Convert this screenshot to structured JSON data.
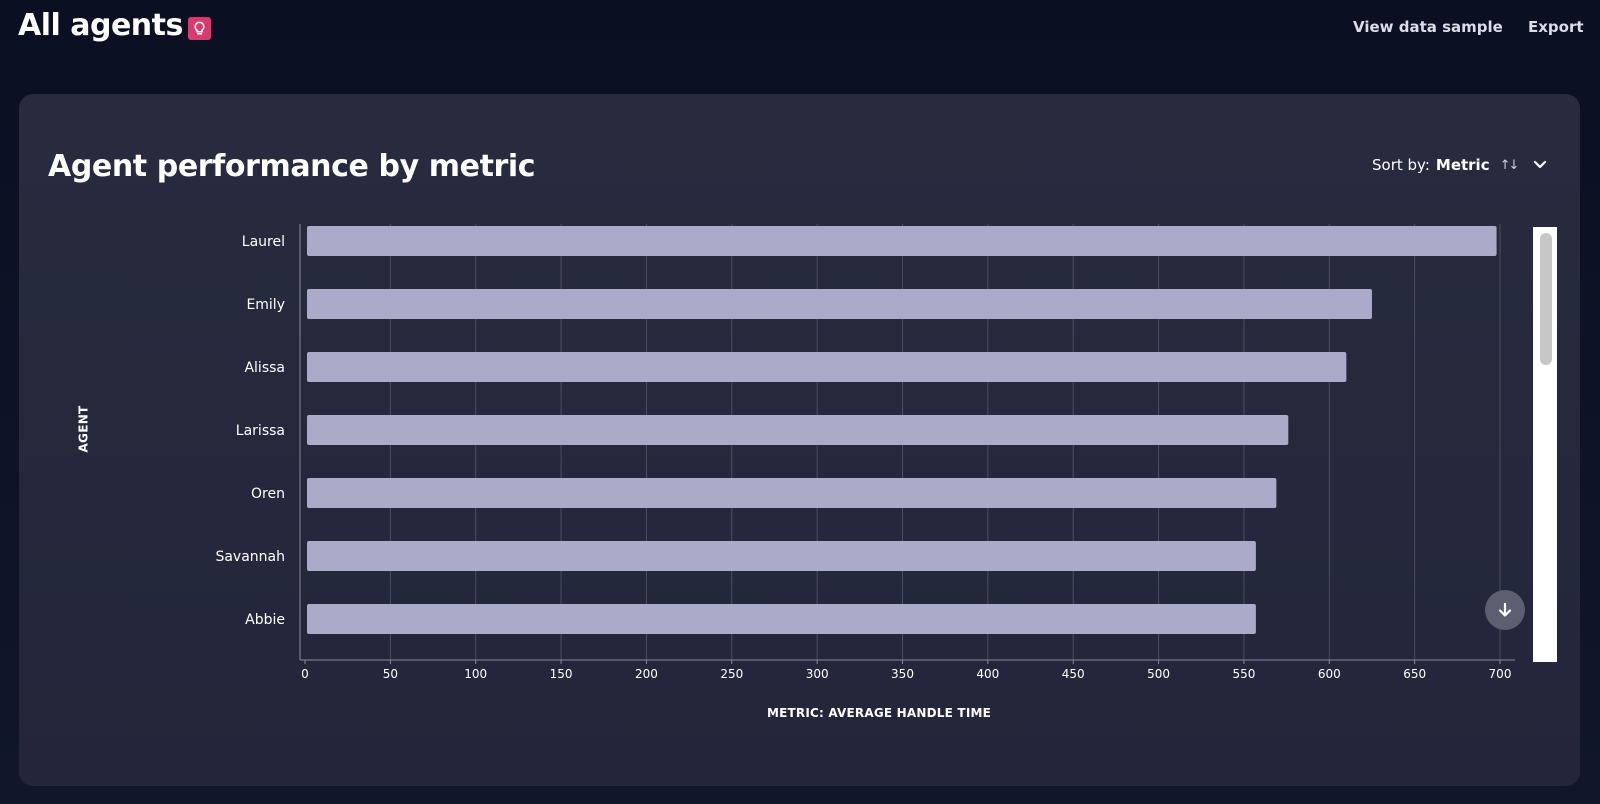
{
  "header": {
    "title": "All agents",
    "badge_icon": "lightbulb-icon",
    "view_data_sample_label": "View data sample",
    "export_label": "Export"
  },
  "card": {
    "title": "Agent performance by metric",
    "sort_label": "Sort by:",
    "sort_value": "Metric",
    "sort_icon": "sort-arrows-icon",
    "dropdown_icon": "chevron-down-icon"
  },
  "colors": {
    "background": "#0d1122",
    "card": "#262a3c",
    "bar": "#abaac9",
    "badge": "#d63a6e",
    "grid": "#4b4e62"
  },
  "chart_data": {
    "type": "bar",
    "orientation": "horizontal",
    "categories": [
      "Laurel",
      "Emily",
      "Alissa",
      "Larissa",
      "Oren",
      "Savannah",
      "Abbie"
    ],
    "values": [
      698,
      625,
      610,
      576,
      569,
      557,
      557
    ],
    "xlabel": "METRIC: AVERAGE HANDLE TIME",
    "ylabel": "AGENT",
    "xlim": [
      0,
      700
    ],
    "xticks": [
      0,
      50,
      100,
      150,
      200,
      250,
      300,
      350,
      400,
      450,
      500,
      550,
      600,
      650,
      700
    ],
    "grid": true
  }
}
